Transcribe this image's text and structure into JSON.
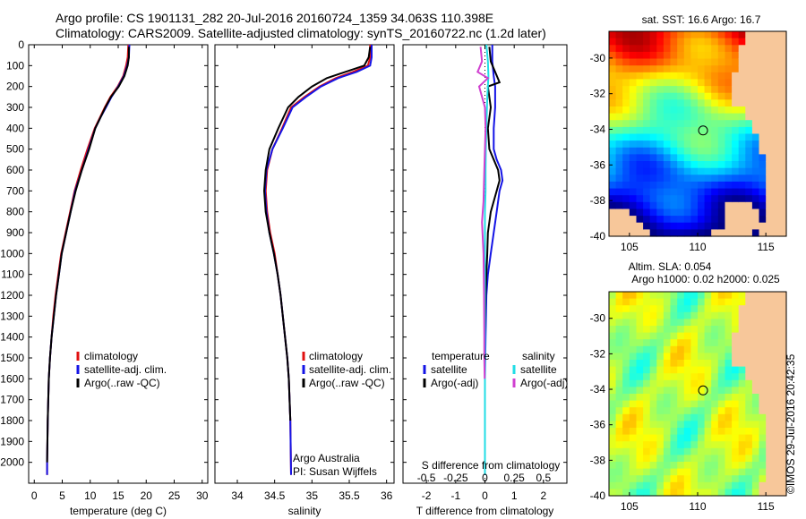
{
  "header": {
    "line1": "Argo profile: CS 1901131_282 20-Jul-2016 20160724_1359 34.063S 110.398E",
    "line2": "Climatology: CARS2009. Satellite-adjusted climatology: synTS_20160722.nc (1.2d later)"
  },
  "colors": {
    "clim": "#e01010",
    "sat": "#1414e6",
    "argo": "#000000",
    "tsat": "#1414e6",
    "ssat": "#22dde6",
    "sargo": "#d040d0"
  },
  "chart_data": [
    {
      "type": "line",
      "id": "temperature",
      "xlabel": "temperature (deg C)",
      "ylabel": "",
      "xlim": [
        -1,
        31
      ],
      "ylim": [
        2100,
        0
      ],
      "xticks": [
        "0",
        "5",
        "10",
        "15",
        "20",
        "25",
        "30"
      ],
      "yticks": [
        "0",
        "100",
        "200",
        "300",
        "400",
        "500",
        "600",
        "700",
        "800",
        "900",
        "1000",
        "1100",
        "1200",
        "1300",
        "1400",
        "1500",
        "1600",
        "1700",
        "1800",
        "1900",
        "2000"
      ],
      "legend": [
        "climatology",
        "satellite-adj. clim.",
        "Argo(..raw -QC)"
      ],
      "series": [
        {
          "name": "climatology",
          "x": [
            16.8,
            16.7,
            16.4,
            15.9,
            14.9,
            13.6,
            12.6,
            11.7,
            10.8,
            9.5,
            8.3,
            7.2,
            6.4,
            5.6,
            4.8,
            4.3,
            3.8,
            3.4,
            3.1,
            2.8,
            2.6,
            2.4,
            2.3,
            2.3
          ],
          "y": [
            0,
            60,
            100,
            150,
            200,
            250,
            300,
            350,
            400,
            500,
            600,
            700,
            800,
            900,
            1000,
            1100,
            1200,
            1300,
            1400,
            1500,
            1600,
            1800,
            2000,
            2060
          ]
        },
        {
          "name": "satellite-adj. clim.",
          "x": [
            17.0,
            16.9,
            16.6,
            16.0,
            15.0,
            13.8,
            12.8,
            11.8,
            10.9,
            9.7,
            8.5,
            7.3,
            6.5,
            5.7,
            4.9,
            4.4,
            3.9,
            3.5,
            3.1,
            2.8,
            2.6,
            2.4,
            2.3,
            2.3
          ],
          "y": [
            0,
            60,
            100,
            150,
            200,
            250,
            300,
            350,
            400,
            500,
            600,
            700,
            800,
            900,
            1000,
            1100,
            1200,
            1300,
            1400,
            1500,
            1600,
            1800,
            2000,
            2060
          ]
        },
        {
          "name": "Argo(..raw -QC)",
          "x": [
            16.9,
            16.9,
            16.7,
            16.1,
            15.1,
            13.7,
            12.7,
            11.8,
            10.9,
            9.8,
            8.5,
            7.4,
            6.5,
            5.7,
            4.9,
            4.4,
            3.9,
            3.5,
            3.1,
            2.8,
            2.6,
            2.4,
            2.3
          ],
          "y": [
            10,
            60,
            100,
            150,
            200,
            250,
            300,
            350,
            400,
            500,
            600,
            700,
            800,
            900,
            1000,
            1100,
            1200,
            1300,
            1400,
            1500,
            1600,
            1800,
            2000
          ]
        }
      ]
    },
    {
      "type": "line",
      "id": "salinity",
      "xlabel": "salinity",
      "ylabel": "",
      "xlim": [
        33.7,
        36.1
      ],
      "ylim": [
        2100,
        0
      ],
      "xticks": [
        "34",
        "34.5",
        "35",
        "35.5",
        "36"
      ],
      "legend": [
        "climatology",
        "satellite-adj. clim.",
        "Argo(..raw -QC)"
      ],
      "annotation": [
        "Argo Australia",
        "PI: Susan Wijffels"
      ],
      "series": [
        {
          "name": "climatology",
          "x": [
            35.78,
            35.78,
            35.75,
            35.55,
            35.32,
            35.1,
            34.9,
            34.72,
            34.6,
            34.47,
            34.4,
            34.38,
            34.4,
            34.44,
            34.5,
            34.54,
            34.58,
            34.61,
            34.64,
            34.67,
            34.69,
            34.71,
            34.72
          ],
          "y": [
            0,
            60,
            100,
            130,
            160,
            200,
            250,
            300,
            400,
            500,
            600,
            700,
            800,
            900,
            1000,
            1100,
            1200,
            1300,
            1400,
            1500,
            1600,
            1800,
            2060
          ]
        },
        {
          "name": "satellite-adj. clim.",
          "x": [
            35.8,
            35.8,
            35.78,
            35.6,
            35.35,
            35.12,
            34.92,
            34.74,
            34.61,
            34.47,
            34.39,
            34.37,
            34.39,
            34.43,
            34.49,
            34.54,
            34.58,
            34.61,
            34.64,
            34.67,
            34.69,
            34.71,
            34.72
          ],
          "y": [
            0,
            60,
            100,
            130,
            160,
            200,
            250,
            300,
            400,
            500,
            600,
            700,
            800,
            900,
            1000,
            1100,
            1200,
            1300,
            1400,
            1500,
            1600,
            1800,
            2060
          ]
        },
        {
          "name": "Argo(..raw -QC)",
          "x": [
            35.78,
            35.76,
            35.7,
            35.45,
            35.2,
            35.0,
            34.82,
            34.68,
            34.55,
            34.43,
            34.38,
            34.36,
            34.38,
            34.43,
            34.49,
            34.54,
            34.58,
            34.61,
            34.64,
            34.67,
            34.69,
            34.71
          ],
          "y": [
            10,
            60,
            100,
            130,
            160,
            200,
            250,
            300,
            400,
            500,
            600,
            700,
            800,
            900,
            1000,
            1100,
            1200,
            1300,
            1400,
            1500,
            1600,
            1800
          ]
        }
      ]
    },
    {
      "type": "line",
      "id": "difference",
      "xlabel": "T difference from climatology",
      "xlabel2": "S difference from climatology",
      "xlim": [
        -2.8,
        2.8
      ],
      "ylim": [
        2100,
        0
      ],
      "xticks": [
        "-2",
        "-1",
        "0",
        "1",
        "2"
      ],
      "xticks_top": [
        "-0.5",
        "-0.25",
        "0",
        "0.25",
        "0.5"
      ],
      "legend_left": [
        "temperature",
        "satellite",
        "Argo(-adj)"
      ],
      "legend_right": [
        "salinity",
        "satellite",
        "Argo(-adj)"
      ],
      "series": [
        {
          "name": "T satellite",
          "x": [
            0.25,
            0.25,
            0.3,
            0.35,
            0.35,
            0.3,
            0.3,
            0.4,
            0.55,
            0.6,
            0.5,
            0.4,
            0.3,
            0.2,
            0.1,
            0.05,
            0.02,
            0.0,
            0.0,
            0.0,
            0.0
          ],
          "y": [
            0,
            80,
            150,
            200,
            300,
            400,
            500,
            550,
            600,
            650,
            700,
            800,
            900,
            1000,
            1100,
            1200,
            1400,
            1600,
            1800,
            2000,
            2060
          ]
        },
        {
          "name": "T Argo(-adj)",
          "x": [
            0.15,
            0.2,
            0.5,
            0.1,
            0.2,
            0.1,
            0.15,
            0.3,
            0.45,
            0.5,
            0.4,
            0.2,
            0.1,
            0.08,
            0.05,
            0.02,
            0.0,
            0.0,
            0.0
          ],
          "y": [
            10,
            80,
            180,
            200,
            300,
            400,
            500,
            550,
            600,
            650,
            700,
            800,
            900,
            1000,
            1100,
            1200,
            1400,
            1600,
            2000
          ]
        },
        {
          "name": "S satellite",
          "x": [
            0.05,
            0.1,
            0.12,
            0.08,
            0.05,
            0.03,
            0.02,
            0.02,
            0.0,
            0.0,
            0.0,
            0.0,
            0.0,
            0.0
          ],
          "y": [
            0,
            80,
            150,
            250,
            400,
            500,
            600,
            700,
            800,
            1000,
            1200,
            1500,
            1800,
            2060
          ]
        },
        {
          "name": "S Argo(-adj)",
          "x": [
            -0.15,
            -0.1,
            -0.25,
            0.1,
            -0.2,
            0.0,
            0.02,
            -0.02,
            -0.05,
            -0.1,
            -0.05,
            -0.03,
            -0.02,
            -0.02,
            -0.01
          ],
          "y": [
            10,
            80,
            130,
            160,
            200,
            300,
            400,
            600,
            750,
            850,
            1000,
            1200,
            1400,
            1500,
            1600
          ]
        }
      ]
    },
    {
      "type": "heatmap",
      "id": "sst_map",
      "title": "sat. SST: 16.6 Argo: 16.7",
      "xticks": [
        "105",
        "110",
        "115"
      ],
      "yticks": [
        "-30",
        "-32",
        "-34",
        "-36",
        "-38",
        "-40"
      ],
      "xlim": [
        103.5,
        116.5
      ],
      "ylim": [
        -40,
        -28.5
      ]
    },
    {
      "type": "heatmap",
      "id": "sla_map",
      "title": "Altim. SLA: 0.054",
      "subtitle": "Argo h1000: 0.02 h2000: 0.025",
      "xticks": [
        "105",
        "110",
        "115"
      ],
      "yticks": [
        "-30",
        "-32",
        "-34",
        "-36",
        "-38",
        "-40"
      ],
      "xlim": [
        103.5,
        116.5
      ],
      "ylim": [
        -40,
        -28.5
      ]
    }
  ],
  "stamp": "©IMOS 29-Jul-2016 20:42:35"
}
